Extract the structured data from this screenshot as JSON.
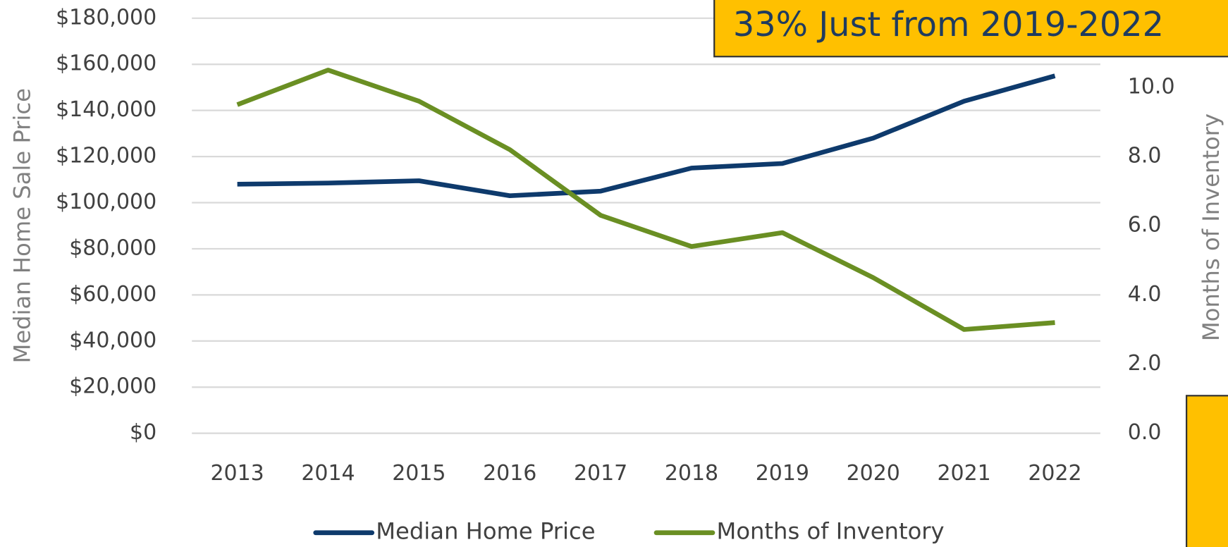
{
  "chart_data": {
    "type": "line",
    "annotation": "33% Just from 2019-2022",
    "y_label": "Median Home Sale Price",
    "y2_label": "Months of Inventory",
    "categories": [
      "2013",
      "2014",
      "2015",
      "2016",
      "2017",
      "2018",
      "2019",
      "2020",
      "2021",
      "2022"
    ],
    "series": [
      {
        "name": "Median Home Price",
        "color": "#0e3a6c",
        "values": [
          108000,
          108500,
          109500,
          103000,
          105000,
          115000,
          117000,
          128000,
          144000,
          155000
        ]
      },
      {
        "name": "Months of Inventory",
        "color": "#6a8f23",
        "axis": "y2",
        "values": [
          9.5,
          10.5,
          9.6,
          8.2,
          6.3,
          5.4,
          5.8,
          4.5,
          3.0,
          3.2
        ]
      }
    ],
    "ylim": [
      0,
      180000
    ],
    "yticks": [
      {
        "value": 0,
        "label": "$0"
      },
      {
        "value": 20000,
        "label": "$20,000"
      },
      {
        "value": 40000,
        "label": "$40,000"
      },
      {
        "value": 60000,
        "label": "$60,000"
      },
      {
        "value": 80000,
        "label": "$80,000"
      },
      {
        "value": 100000,
        "label": "$100,000"
      },
      {
        "value": 120000,
        "label": "$120,000"
      },
      {
        "value": 140000,
        "label": "$140,000"
      },
      {
        "value": 160000,
        "label": "$160,000"
      },
      {
        "value": 180000,
        "label": "$180,000"
      }
    ],
    "y2lim": [
      0,
      12
    ],
    "y2ticks": [
      {
        "value": 0,
        "label": "0.0"
      },
      {
        "value": 2,
        "label": "2.0"
      },
      {
        "value": 4,
        "label": "4.0"
      },
      {
        "value": 6,
        "label": "6.0"
      },
      {
        "value": 8,
        "label": "8.0"
      },
      {
        "value": 10,
        "label": "10.0"
      }
    ],
    "grid": true,
    "legend": "bottom"
  }
}
